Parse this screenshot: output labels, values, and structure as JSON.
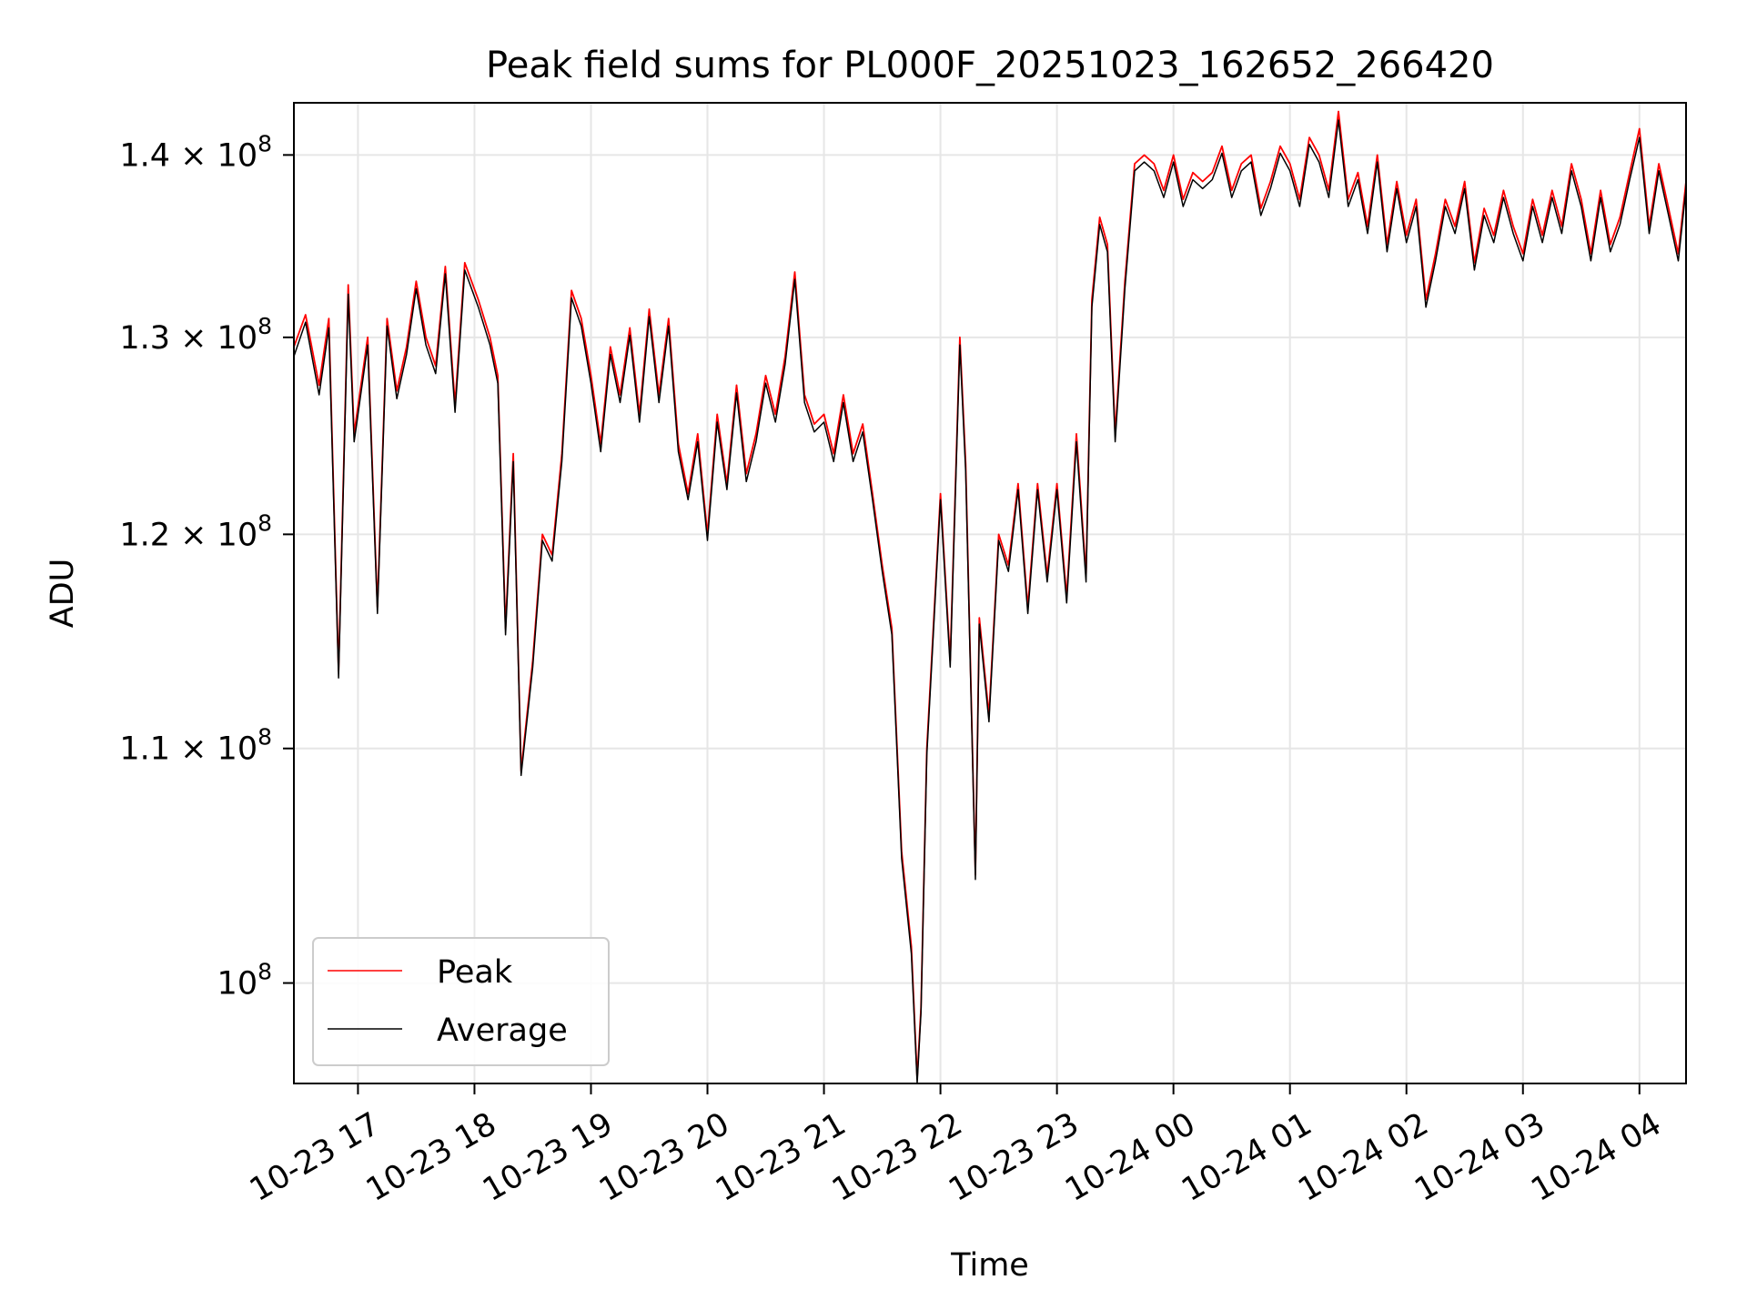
{
  "chart_data": {
    "type": "line",
    "title": "Peak field sums for PL000F_20251023_162652_266420",
    "xlabel": "Time",
    "ylabel": "ADU",
    "yscale": "log",
    "ylim": [
      96000000,
      143000000
    ],
    "xlim": [
      "2025-10-23 16:27",
      "2025-10-24 04:24"
    ],
    "grid": true,
    "legend_position": "lower-left",
    "x_ticks": [
      {
        "value": "2025-10-23 17:00",
        "label": "10-23 17"
      },
      {
        "value": "2025-10-23 18:00",
        "label": "10-23 18"
      },
      {
        "value": "2025-10-23 19:00",
        "label": "10-23 19"
      },
      {
        "value": "2025-10-23 20:00",
        "label": "10-23 20"
      },
      {
        "value": "2025-10-23 21:00",
        "label": "10-23 21"
      },
      {
        "value": "2025-10-23 22:00",
        "label": "10-23 22"
      },
      {
        "value": "2025-10-23 23:00",
        "label": "10-23 23"
      },
      {
        "value": "2025-10-24 00:00",
        "label": "10-24 00"
      },
      {
        "value": "2025-10-24 01:00",
        "label": "10-24 01"
      },
      {
        "value": "2025-10-24 02:00",
        "label": "10-24 02"
      },
      {
        "value": "2025-10-24 03:00",
        "label": "10-24 03"
      },
      {
        "value": "2025-10-24 04:00",
        "label": "10-24 04"
      }
    ],
    "y_ticks": [
      {
        "value": 100000000,
        "mantissa": "",
        "label": "10"
      },
      {
        "value": 110000000,
        "mantissa": "1.1",
        "label": "10"
      },
      {
        "value": 120000000,
        "mantissa": "1.2",
        "label": "10"
      },
      {
        "value": 130000000,
        "mantissa": "1.3",
        "label": "10"
      },
      {
        "value": 140000000,
        "mantissa": "1.4",
        "label": "10"
      }
    ],
    "y_tick_exponent": "8",
    "y_tick_times": "×",
    "series": [
      {
        "name": "Peak",
        "color": "#ff0000",
        "x": [
          "2025-10-23 16:27",
          "2025-10-23 16:33",
          "2025-10-23 16:40",
          "2025-10-23 16:45",
          "2025-10-23 16:50",
          "2025-10-23 16:55",
          "2025-10-23 16:58",
          "2025-10-23 17:05",
          "2025-10-23 17:10",
          "2025-10-23 17:15",
          "2025-10-23 17:20",
          "2025-10-23 17:25",
          "2025-10-23 17:30",
          "2025-10-23 17:35",
          "2025-10-23 17:40",
          "2025-10-23 17:45",
          "2025-10-23 17:50",
          "2025-10-23 17:55",
          "2025-10-23 18:02",
          "2025-10-23 18:08",
          "2025-10-23 18:12",
          "2025-10-23 18:16",
          "2025-10-23 18:20",
          "2025-10-23 18:24",
          "2025-10-23 18:30",
          "2025-10-23 18:35",
          "2025-10-23 18:40",
          "2025-10-23 18:45",
          "2025-10-23 18:50",
          "2025-10-23 18:55",
          "2025-10-23 19:00",
          "2025-10-23 19:05",
          "2025-10-23 19:10",
          "2025-10-23 19:15",
          "2025-10-23 19:20",
          "2025-10-23 19:25",
          "2025-10-23 19:30",
          "2025-10-23 19:35",
          "2025-10-23 19:40",
          "2025-10-23 19:45",
          "2025-10-23 19:50",
          "2025-10-23 19:55",
          "2025-10-23 20:00",
          "2025-10-23 20:05",
          "2025-10-23 20:10",
          "2025-10-23 20:15",
          "2025-10-23 20:20",
          "2025-10-23 20:25",
          "2025-10-23 20:30",
          "2025-10-23 20:35",
          "2025-10-23 20:40",
          "2025-10-23 20:45",
          "2025-10-23 20:50",
          "2025-10-23 20:55",
          "2025-10-23 21:00",
          "2025-10-23 21:05",
          "2025-10-23 21:10",
          "2025-10-23 21:15",
          "2025-10-23 21:20",
          "2025-10-23 21:25",
          "2025-10-23 21:30",
          "2025-10-23 21:35",
          "2025-10-23 21:40",
          "2025-10-23 21:45",
          "2025-10-23 21:48",
          "2025-10-23 21:50",
          "2025-10-23 21:53",
          "2025-10-23 21:56",
          "2025-10-23 22:00",
          "2025-10-23 22:05",
          "2025-10-23 22:10",
          "2025-10-23 22:13",
          "2025-10-23 22:18",
          "2025-10-23 22:20",
          "2025-10-23 22:25",
          "2025-10-23 22:30",
          "2025-10-23 22:35",
          "2025-10-23 22:40",
          "2025-10-23 22:45",
          "2025-10-23 22:50",
          "2025-10-23 22:55",
          "2025-10-23 23:00",
          "2025-10-23 23:05",
          "2025-10-23 23:10",
          "2025-10-23 23:15",
          "2025-10-23 23:18",
          "2025-10-23 23:22",
          "2025-10-23 23:26",
          "2025-10-23 23:30",
          "2025-10-23 23:35",
          "2025-10-23 23:40",
          "2025-10-23 23:45",
          "2025-10-23 23:50",
          "2025-10-23 23:55",
          "2025-10-24 00:00",
          "2025-10-24 00:05",
          "2025-10-24 00:10",
          "2025-10-24 00:15",
          "2025-10-24 00:20",
          "2025-10-24 00:25",
          "2025-10-24 00:30",
          "2025-10-24 00:35",
          "2025-10-24 00:40",
          "2025-10-24 00:45",
          "2025-10-24 00:50",
          "2025-10-24 00:55",
          "2025-10-24 01:00",
          "2025-10-24 01:05",
          "2025-10-24 01:10",
          "2025-10-24 01:15",
          "2025-10-24 01:20",
          "2025-10-24 01:25",
          "2025-10-24 01:30",
          "2025-10-24 01:35",
          "2025-10-24 01:40",
          "2025-10-24 01:45",
          "2025-10-24 01:50",
          "2025-10-24 01:55",
          "2025-10-24 02:00",
          "2025-10-24 02:05",
          "2025-10-24 02:10",
          "2025-10-24 02:15",
          "2025-10-24 02:20",
          "2025-10-24 02:25",
          "2025-10-24 02:30",
          "2025-10-24 02:35",
          "2025-10-24 02:40",
          "2025-10-24 02:45",
          "2025-10-24 02:50",
          "2025-10-24 02:55",
          "2025-10-24 03:00",
          "2025-10-24 03:05",
          "2025-10-24 03:10",
          "2025-10-24 03:15",
          "2025-10-24 03:20",
          "2025-10-24 03:25",
          "2025-10-24 03:30",
          "2025-10-24 03:35",
          "2025-10-24 03:40",
          "2025-10-24 03:45",
          "2025-10-24 03:50",
          "2025-10-24 03:55",
          "2025-10-24 04:00",
          "2025-10-24 04:05",
          "2025-10-24 04:10",
          "2025-10-24 04:15",
          "2025-10-24 04:20",
          "2025-10-24 04:24"
        ],
        "values": [
          129500000,
          131200000,
          127500000,
          131000000,
          113500000,
          132800000,
          125000000,
          130000000,
          116500000,
          131000000,
          127200000,
          129500000,
          133000000,
          130000000,
          128500000,
          133800000,
          126500000,
          134000000,
          132000000,
          130000000,
          128000000,
          115500000,
          124000000,
          109000000,
          114000000,
          120000000,
          119000000,
          124000000,
          132500000,
          131000000,
          128000000,
          124500000,
          129500000,
          127000000,
          130500000,
          126000000,
          131500000,
          127000000,
          131000000,
          124500000,
          122000000,
          125000000,
          120000000,
          126000000,
          122500000,
          127500000,
          123000000,
          125000000,
          128000000,
          126000000,
          129000000,
          133500000,
          127000000,
          125500000,
          126000000,
          124000000,
          127000000,
          124000000,
          125500000,
          122000000,
          118500000,
          115500000,
          105500000,
          101500000,
          96200000,
          99000000,
          110000000,
          115000000,
          122000000,
          114000000,
          130000000,
          123500000,
          104500000,
          116000000,
          111500000,
          120000000,
          118500000,
          122500000,
          116500000,
          122500000,
          118000000,
          122500000,
          117000000,
          125000000,
          118000000,
          132000000,
          136500000,
          135000000,
          125000000,
          133000000,
          139500000,
          140000000,
          139500000,
          138000000,
          140000000,
          137500000,
          139000000,
          138500000,
          139000000,
          140500000,
          138000000,
          139500000,
          140000000,
          137000000,
          138500000,
          140500000,
          139500000,
          137500000,
          141000000,
          140000000,
          138000000,
          142500000,
          137500000,
          139000000,
          136000000,
          140000000,
          135000000,
          138500000,
          135500000,
          137500000,
          132000000,
          134500000,
          137500000,
          136000000,
          138500000,
          134000000,
          137000000,
          135500000,
          138000000,
          136000000,
          134500000,
          137500000,
          135500000,
          138000000,
          136000000,
          139500000,
          137500000,
          134500000,
          138000000,
          135000000,
          136500000,
          139000000,
          141500000,
          136000000,
          139500000,
          137000000,
          134500000,
          138500000
        ]
      },
      {
        "name": "Average",
        "color": "#000000",
        "x": [
          "2025-10-23 16:27",
          "2025-10-23 16:33",
          "2025-10-23 16:40",
          "2025-10-23 16:45",
          "2025-10-23 16:50",
          "2025-10-23 16:55",
          "2025-10-23 16:58",
          "2025-10-23 17:05",
          "2025-10-23 17:10",
          "2025-10-23 17:15",
          "2025-10-23 17:20",
          "2025-10-23 17:25",
          "2025-10-23 17:30",
          "2025-10-23 17:35",
          "2025-10-23 17:40",
          "2025-10-23 17:45",
          "2025-10-23 17:50",
          "2025-10-23 17:55",
          "2025-10-23 18:02",
          "2025-10-23 18:08",
          "2025-10-23 18:12",
          "2025-10-23 18:16",
          "2025-10-23 18:20",
          "2025-10-23 18:24",
          "2025-10-23 18:30",
          "2025-10-23 18:35",
          "2025-10-23 18:40",
          "2025-10-23 18:45",
          "2025-10-23 18:50",
          "2025-10-23 18:55",
          "2025-10-23 19:00",
          "2025-10-23 19:05",
          "2025-10-23 19:10",
          "2025-10-23 19:15",
          "2025-10-23 19:20",
          "2025-10-23 19:25",
          "2025-10-23 19:30",
          "2025-10-23 19:35",
          "2025-10-23 19:40",
          "2025-10-23 19:45",
          "2025-10-23 19:50",
          "2025-10-23 19:55",
          "2025-10-23 20:00",
          "2025-10-23 20:05",
          "2025-10-23 20:10",
          "2025-10-23 20:15",
          "2025-10-23 20:20",
          "2025-10-23 20:25",
          "2025-10-23 20:30",
          "2025-10-23 20:35",
          "2025-10-23 20:40",
          "2025-10-23 20:45",
          "2025-10-23 20:50",
          "2025-10-23 20:55",
          "2025-10-23 21:00",
          "2025-10-23 21:05",
          "2025-10-23 21:10",
          "2025-10-23 21:15",
          "2025-10-23 21:20",
          "2025-10-23 21:25",
          "2025-10-23 21:30",
          "2025-10-23 21:35",
          "2025-10-23 21:40",
          "2025-10-23 21:45",
          "2025-10-23 21:48",
          "2025-10-23 21:50",
          "2025-10-23 21:53",
          "2025-10-23 21:56",
          "2025-10-23 22:00",
          "2025-10-23 22:05",
          "2025-10-23 22:10",
          "2025-10-23 22:13",
          "2025-10-23 22:18",
          "2025-10-23 22:20",
          "2025-10-23 22:25",
          "2025-10-23 22:30",
          "2025-10-23 22:35",
          "2025-10-23 22:40",
          "2025-10-23 22:45",
          "2025-10-23 22:50",
          "2025-10-23 22:55",
          "2025-10-23 23:00",
          "2025-10-23 23:05",
          "2025-10-23 23:10",
          "2025-10-23 23:15",
          "2025-10-23 23:18",
          "2025-10-23 23:22",
          "2025-10-23 23:26",
          "2025-10-23 23:30",
          "2025-10-23 23:35",
          "2025-10-23 23:40",
          "2025-10-23 23:45",
          "2025-10-23 23:50",
          "2025-10-23 23:55",
          "2025-10-24 00:00",
          "2025-10-24 00:05",
          "2025-10-24 00:10",
          "2025-10-24 00:15",
          "2025-10-24 00:20",
          "2025-10-24 00:25",
          "2025-10-24 00:30",
          "2025-10-24 00:35",
          "2025-10-24 00:40",
          "2025-10-24 00:45",
          "2025-10-24 00:50",
          "2025-10-24 00:55",
          "2025-10-24 01:00",
          "2025-10-24 01:05",
          "2025-10-24 01:10",
          "2025-10-24 01:15",
          "2025-10-24 01:20",
          "2025-10-24 01:25",
          "2025-10-24 01:30",
          "2025-10-24 01:35",
          "2025-10-24 01:40",
          "2025-10-24 01:45",
          "2025-10-24 01:50",
          "2025-10-24 01:55",
          "2025-10-24 02:00",
          "2025-10-24 02:05",
          "2025-10-24 02:10",
          "2025-10-24 02:15",
          "2025-10-24 02:20",
          "2025-10-24 02:25",
          "2025-10-24 02:30",
          "2025-10-24 02:35",
          "2025-10-24 02:40",
          "2025-10-24 02:45",
          "2025-10-24 02:50",
          "2025-10-24 02:55",
          "2025-10-24 03:00",
          "2025-10-24 03:05",
          "2025-10-24 03:10",
          "2025-10-24 03:15",
          "2025-10-24 03:20",
          "2025-10-24 03:25",
          "2025-10-24 03:30",
          "2025-10-24 03:35",
          "2025-10-24 03:40",
          "2025-10-24 03:45",
          "2025-10-24 03:50",
          "2025-10-24 03:55",
          "2025-10-24 04:00",
          "2025-10-24 04:05",
          "2025-10-24 04:10",
          "2025-10-24 04:15",
          "2025-10-24 04:20",
          "2025-10-24 04:24"
        ],
        "values": [
          129000000,
          130800000,
          127000000,
          130500000,
          113200000,
          132300000,
          124600000,
          129600000,
          116200000,
          130600000,
          126800000,
          129100000,
          132600000,
          129600000,
          128100000,
          133400000,
          126100000,
          133600000,
          131600000,
          129600000,
          127600000,
          115200000,
          123600000,
          108800000,
          113700000,
          119700000,
          118700000,
          123600000,
          132100000,
          130600000,
          127600000,
          124100000,
          129100000,
          126600000,
          130100000,
          125600000,
          131100000,
          126600000,
          130600000,
          124100000,
          121700000,
          124600000,
          119700000,
          125600000,
          122200000,
          127100000,
          122600000,
          124600000,
          127600000,
          125600000,
          128600000,
          133100000,
          126600000,
          125100000,
          125600000,
          123600000,
          126600000,
          123600000,
          125100000,
          121700000,
          118200000,
          115200000,
          105200000,
          101200000,
          96000000,
          98800000,
          109700000,
          114700000,
          121700000,
          113700000,
          129600000,
          123100000,
          104300000,
          115700000,
          111200000,
          119700000,
          118200000,
          122200000,
          116200000,
          122200000,
          117700000,
          122200000,
          116700000,
          124600000,
          117700000,
          131600000,
          136100000,
          134600000,
          124600000,
          132600000,
          139100000,
          139600000,
          139100000,
          137600000,
          139600000,
          137100000,
          138600000,
          138100000,
          138600000,
          140100000,
          137600000,
          139100000,
          139600000,
          136600000,
          138100000,
          140100000,
          139100000,
          137100000,
          140600000,
          139600000,
          137600000,
          142000000,
          137100000,
          138600000,
          135600000,
          139600000,
          134600000,
          138100000,
          135100000,
          137100000,
          131600000,
          134100000,
          137100000,
          135600000,
          138100000,
          133600000,
          136600000,
          135100000,
          137600000,
          135600000,
          134100000,
          137100000,
          135100000,
          137600000,
          135600000,
          139100000,
          137100000,
          134100000,
          137600000,
          134600000,
          136100000,
          138600000,
          141000000,
          135600000,
          139100000,
          136600000,
          134100000,
          138100000
        ]
      }
    ]
  }
}
